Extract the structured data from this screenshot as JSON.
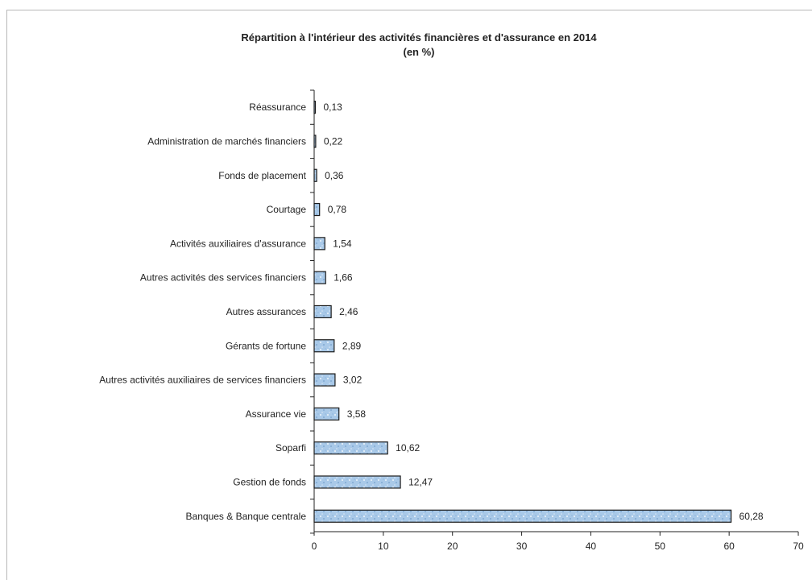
{
  "chart_data": {
    "type": "bar",
    "orientation": "horizontal",
    "title": "Répartition à l'intérieur des activités financières et d'assurance en 2014",
    "subtitle": "(en %)",
    "xlabel": "",
    "ylabel": "",
    "xlim": [
      0,
      70
    ],
    "xticks": [
      "0",
      "10",
      "20",
      "30",
      "40",
      "50",
      "60",
      "70"
    ],
    "grid": false,
    "legend": "none",
    "bar_color": "#a9c9e8",
    "bar_edge_color": "#1a1a1a",
    "categories": [
      "Réassurance",
      "Administration de marchés financiers",
      "Fonds de placement",
      "Courtage",
      "Activités auxiliaires d'assurance",
      "Autres activités des services financiers",
      "Autres assurances",
      "Gérants de fortune",
      "Autres activités auxiliaires de services financiers",
      "Assurance vie",
      "Soparfi",
      "Gestion de fonds",
      "Banques & Banque centrale"
    ],
    "values": [
      0.13,
      0.22,
      0.36,
      0.78,
      1.54,
      1.66,
      2.46,
      2.89,
      3.02,
      3.58,
      10.62,
      12.47,
      60.28
    ],
    "value_labels": [
      "0,13",
      "0,22",
      "0,36",
      "0,78",
      "1,54",
      "1,66",
      "2,46",
      "2,89",
      "3,02",
      "3,58",
      "10,62",
      "12,47",
      "60,28"
    ]
  }
}
